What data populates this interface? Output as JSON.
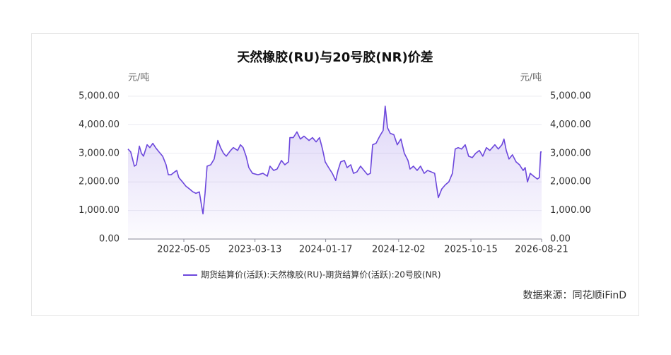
{
  "chart_data": {
    "type": "line",
    "title": "天然橡胶(RU)与20号胶(NR)价差",
    "y_label": "元/吨",
    "y2_label": "元/吨",
    "source": "数据来源：同花顺iFinD",
    "x": [
      "2021-09-02",
      "2021-09-14",
      "2021-09-30",
      "2021-10-09",
      "2021-10-22",
      "2021-10-31",
      "2021-11-09",
      "2021-11-25",
      "2021-12-07",
      "2021-12-20",
      "2022-01-01",
      "2022-01-16",
      "2022-02-01",
      "2022-02-16",
      "2022-02-26",
      "2022-03-10",
      "2022-03-26",
      "2022-04-04",
      "2022-04-13",
      "2022-04-29",
      "2022-05-14",
      "2022-05-30",
      "2022-06-14",
      "2022-06-27",
      "2022-07-12",
      "2022-07-21",
      "2022-07-28",
      "2022-08-06",
      "2022-08-15",
      "2022-08-31",
      "2022-09-15",
      "2022-10-01",
      "2022-10-13",
      "2022-10-26",
      "2022-11-07",
      "2022-11-26",
      "2022-12-08",
      "2022-12-27",
      "2023-01-08",
      "2023-01-20",
      "2023-02-02",
      "2023-02-14",
      "2023-03-02",
      "2023-03-26",
      "2023-04-17",
      "2023-05-06",
      "2023-05-18",
      "2023-06-03",
      "2023-06-18",
      "2023-07-07",
      "2023-07-22",
      "2023-08-07",
      "2023-08-13",
      "2023-08-28",
      "2023-09-13",
      "2023-09-28",
      "2023-10-14",
      "2023-11-05",
      "2023-11-20",
      "2023-12-06",
      "2023-12-21",
      "2024-01-03",
      "2024-01-15",
      "2024-01-30",
      "2024-02-15",
      "2024-03-01",
      "2024-03-11",
      "2024-03-23",
      "2024-04-08",
      "2024-04-20",
      "2024-05-06",
      "2024-05-18",
      "2024-06-02",
      "2024-06-18",
      "2024-07-03",
      "2024-07-19",
      "2024-07-31",
      "2024-08-10",
      "2024-08-25",
      "2024-09-10",
      "2024-09-25",
      "2024-10-04",
      "2024-10-14",
      "2024-10-26",
      "2024-11-11",
      "2024-11-26",
      "2024-12-12",
      "2024-12-27",
      "2025-01-12",
      "2025-01-21",
      "2025-02-05",
      "2025-02-21",
      "2025-03-08",
      "2025-03-24",
      "2025-04-08",
      "2025-04-24",
      "2025-05-09",
      "2025-05-25",
      "2025-06-09",
      "2025-06-25",
      "2025-07-10",
      "2025-07-26",
      "2025-08-07",
      "2025-08-20",
      "2025-09-04",
      "2025-09-20",
      "2025-10-05",
      "2025-10-21",
      "2025-11-05",
      "2025-11-21",
      "2025-12-06",
      "2025-12-22",
      "2026-01-06",
      "2026-01-28",
      "2026-02-12",
      "2026-02-28",
      "2026-03-09",
      "2026-03-19",
      "2026-03-31",
      "2026-04-15",
      "2026-05-01",
      "2026-05-16",
      "2026-06-01",
      "2026-06-10",
      "2026-06-20",
      "2026-07-02",
      "2026-07-17",
      "2026-08-02",
      "2026-08-11",
      "2026-08-17",
      "2026-08-21"
    ],
    "series": [
      {
        "name": "期货结算价(活跃):天然橡胶(RU)-期货结算价(活跃):20号胶(NR)",
        "color": "#6c47dc",
        "values": [
          3150,
          3050,
          2550,
          2600,
          3250,
          3000,
          2900,
          3300,
          3200,
          3350,
          3200,
          3050,
          2900,
          2600,
          2250,
          2250,
          2350,
          2400,
          2150,
          2000,
          1850,
          1750,
          1650,
          1600,
          1650,
          1200,
          880,
          1600,
          2550,
          2600,
          2800,
          3450,
          3200,
          3000,
          2900,
          3100,
          3200,
          3100,
          3300,
          3200,
          2900,
          2500,
          2300,
          2250,
          2300,
          2200,
          2550,
          2400,
          2450,
          2750,
          2600,
          2700,
          3550,
          3550,
          3750,
          3500,
          3600,
          3450,
          3550,
          3400,
          3550,
          3150,
          2700,
          2500,
          2300,
          2050,
          2400,
          2700,
          2750,
          2500,
          2600,
          2300,
          2350,
          2550,
          2400,
          2250,
          2300,
          3300,
          3350,
          3600,
          3800,
          4650,
          3900,
          3700,
          3650,
          3300,
          3500,
          3000,
          2750,
          2450,
          2550,
          2400,
          2550,
          2300,
          2400,
          2350,
          2300,
          1450,
          1750,
          1900,
          2000,
          2300,
          3150,
          3200,
          3150,
          3300,
          2900,
          2850,
          3000,
          3100,
          2900,
          3200,
          3100,
          3300,
          3150,
          3300,
          3500,
          3100,
          2800,
          2950,
          2700,
          2600,
          2400,
          2500,
          2000,
          2300,
          2200,
          2100,
          2150,
          3050,
          3050
        ]
      }
    ],
    "xlim": [
      "2021-09-02",
      "2026-08-21"
    ],
    "xticks": [
      "2022-05-05",
      "2023-03-13",
      "2024-01-17",
      "2024-12-02",
      "2025-10-15",
      "2026-08-21"
    ],
    "ylim": [
      0,
      5000
    ],
    "yticks": [
      {
        "value": 0,
        "label": "0.00"
      },
      {
        "value": 1000,
        "label": "1,000.00"
      },
      {
        "value": 2000,
        "label": "2,000.00"
      },
      {
        "value": 3000,
        "label": "3,000.00"
      },
      {
        "value": 4000,
        "label": "4,000.00"
      },
      {
        "value": 5000,
        "label": "5,000.00"
      }
    ],
    "y2lim": [
      0,
      5000
    ],
    "y2ticks": [
      {
        "value": 0,
        "label": "0.00"
      },
      {
        "value": 1000,
        "label": "1,000.00"
      },
      {
        "value": 2000,
        "label": "2,000.00"
      },
      {
        "value": 3000,
        "label": "3,000.00"
      },
      {
        "value": 4000,
        "label": "4,000.00"
      },
      {
        "value": 5000,
        "label": "5,000.00"
      }
    ],
    "grid": true,
    "legend": "bottom",
    "area_fill": true
  }
}
